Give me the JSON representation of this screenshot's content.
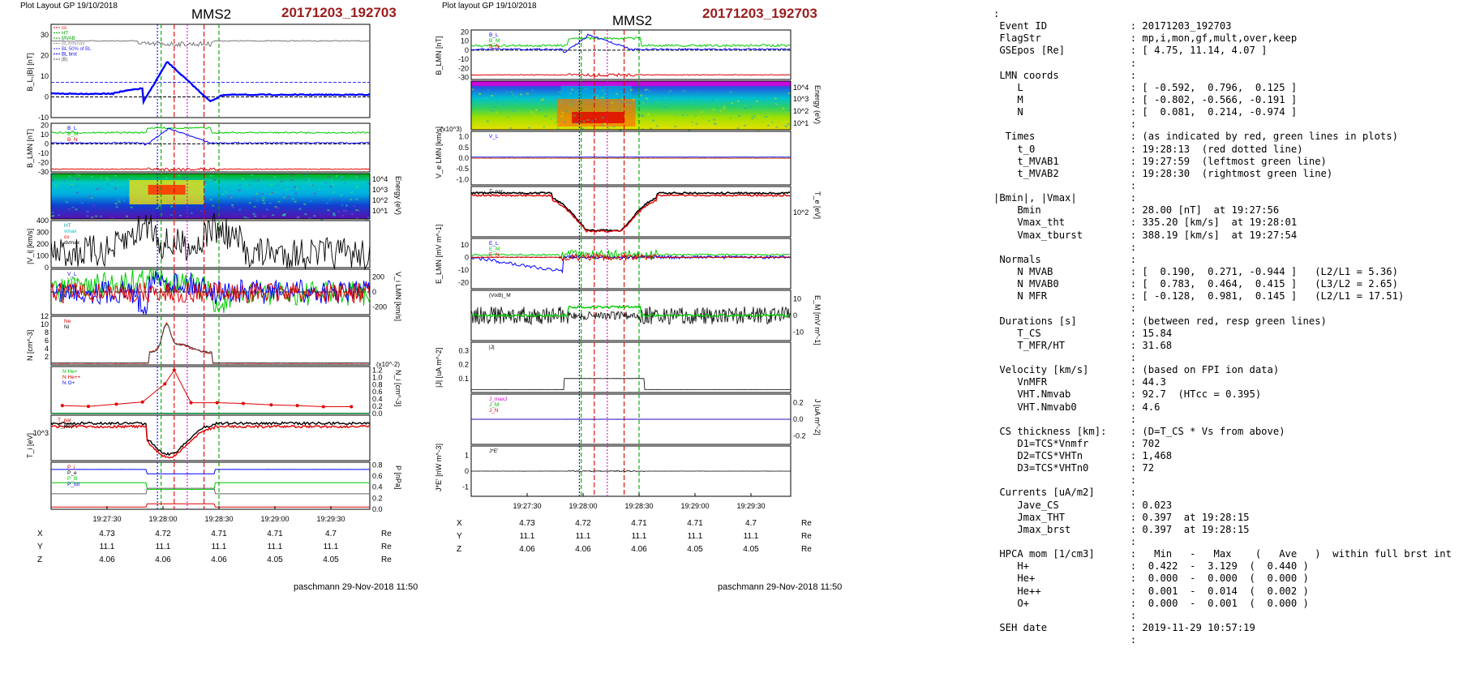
{
  "left": {
    "plot_label": "Plot Layout GP 19/10/2018",
    "spacecraft": "MMS2",
    "event": "20171203_192703",
    "footer": "paschmann 29-Nov-2018 11:50",
    "time_ticks": [
      "19:27:30",
      "19:28:00",
      "19:28:30",
      "19:29:00",
      "19:29:30"
    ],
    "coords": {
      "X": [
        "4.73",
        "4.72",
        "4.71",
        "4.71",
        "4.7"
      ],
      "Y": [
        "11.1",
        "11.1",
        "11.1",
        "11.1",
        "11.1"
      ],
      "Z": [
        "4.06",
        "4.06",
        "4.06",
        "4.05",
        "4.05"
      ],
      "unit": "Re"
    },
    "panels": {
      "bl": {
        "ylabel": "B_L,|B| [nT]",
        "ticks": [
          "30",
          "20",
          "10",
          "0",
          "-10"
        ],
        "legend": [
          "cs",
          "HT",
          "MVAB",
          "BLminmax",
          "BL 50% of BL",
          "BL brst",
          "|B|"
        ]
      },
      "blmn": {
        "ylabel": "B_LMN [nT]",
        "ticks": [
          "20",
          "10",
          "0",
          "-10",
          "-20",
          "-30"
        ],
        "legend": [
          "B_L",
          "B_M",
          "B_N"
        ]
      },
      "ion_spec": {
        "ylabel": "Energy (eV)",
        "ticks": [
          "10^4",
          "10^3",
          "10^2",
          "10^1"
        ]
      },
      "vi": {
        "ylabel": "|V_i| [km/s]",
        "ticks": [
          "400",
          "300",
          "200",
          "100",
          "0"
        ],
        "legend": [
          "HT",
          "vmax",
          "cs",
          "dvmax"
        ]
      },
      "vilmn": {
        "ylabel": "V_i LMN [km/s]",
        "ticks": [
          "200",
          "0",
          "-200"
        ],
        "legend": [
          "V_L",
          "V_M",
          "V_N"
        ]
      },
      "n": {
        "ylabel": "N [cm^-3]",
        "ticks": [
          "12",
          "10",
          "8",
          "6",
          "4",
          "2"
        ],
        "legend": [
          "Ne",
          "Ni"
        ]
      },
      "ni": {
        "ylabel": "N_i [cm^-3]",
        "multiplier": "(x10^-2)",
        "ticks": [
          "1.2",
          "1.0",
          "0.8",
          "0.6",
          "0.4",
          "0.2",
          "0.0"
        ],
        "legend": [
          "N He+",
          "N He++",
          "N O+"
        ]
      },
      "ti": {
        "ylabel": "T_i [eV]",
        "ticks": [
          "10^3"
        ],
        "legend": [
          "T_par",
          "T_perp"
        ]
      },
      "p": {
        "ylabel": "P [nPa]",
        "ticks": [
          "0.8",
          "0.6",
          "0.4",
          "0.2",
          "0.0"
        ],
        "legend": [
          "P_i",
          "P_e",
          "P_B",
          "P_tot"
        ]
      }
    }
  },
  "middle": {
    "plot_label": "Plot layout GP 19/10/2018",
    "spacecraft": "MMS2",
    "event": "20171203_192703",
    "footer": "paschmann 29-Nov-2018 11:50",
    "time_ticks": [
      "19:27:30",
      "19:28:00",
      "19:28:30",
      "19:29:00",
      "19:29:30"
    ],
    "coords": {
      "X": [
        "4.73",
        "4.72",
        "4.71",
        "4.71",
        "4.7"
      ],
      "Y": [
        "11.1",
        "11.1",
        "11.1",
        "11.1",
        "11.1"
      ],
      "Z": [
        "4.06",
        "4.06",
        "4.06",
        "4.05",
        "4.05"
      ],
      "unit": "Re"
    },
    "panels": {
      "blmn": {
        "ylabel": "B_LMN [nT]",
        "ticks": [
          "20",
          "10",
          "0",
          "-10",
          "-20",
          "-30"
        ],
        "legend": [
          "B_L",
          "B_M",
          "B_N"
        ]
      },
      "e_spec": {
        "ylabel": "Energy (eV)",
        "ticks": [
          "10^4",
          "10^3",
          "10^2",
          "10^1"
        ]
      },
      "ve": {
        "ylabel": "V_e LMN [km/s]",
        "multiplier": "(x10^3)",
        "ticks": [
          "1.0",
          "0.5",
          "0.0",
          "-0.5",
          "-1.0"
        ],
        "legend": [
          "V_L"
        ]
      },
      "te": {
        "ylabel": "T_e [eV]",
        "ticks": [
          "10^2"
        ],
        "legend": [
          "T_par"
        ]
      },
      "elmn": {
        "ylabel": "E_LMN [mV m^-1]",
        "ticks": [
          "10",
          "0",
          "-10",
          "-20"
        ],
        "legend": [
          "E_L",
          "E_M",
          "E_N"
        ]
      },
      "em": {
        "ylabel": "E_M [mV m^-1]",
        "ticks": [
          "10",
          "0",
          "-10"
        ],
        "legend": [
          "(VixB)_M"
        ]
      },
      "j": {
        "ylabel": "|J| [uA m^-2]",
        "ticks": [
          "0.3",
          "0.2",
          "0.1"
        ],
        "legend": [
          "|J|"
        ]
      },
      "jlmn": {
        "ylabel": "J [uA m^-2]",
        "ticks": [
          "0.2",
          "0.0",
          "-0.2"
        ],
        "legend": [
          "J_maxJ",
          "J_M",
          "J_N"
        ]
      },
      "je": {
        "ylabel": "J*E' [nW m^-3]",
        "ticks": [
          "1",
          "0",
          "-1"
        ],
        "legend": [
          "J*E'"
        ]
      }
    }
  },
  "info_lines": [
    ":",
    " Event ID              : 20171203_192703",
    " FlagStr               : mp,i,mon,gf,mult,over,keep",
    " GSEpos [Re]           : [ 4.75, 11.14, 4.07 ]",
    "                       :",
    " LMN coords            :",
    "    L                  : [ -0.592,  0.796,  0.125 ]",
    "    M                  : [ -0.802, -0.566, -0.191 ]",
    "    N                  : [  0.081,  0.214, -0.974 ]",
    "                       :",
    "  Times                : (as indicated by red, green lines in plots)",
    "    t_0                : 19:28:13  (red dotted line)",
    "    t_MVAB1            : 19:27:59  (leftmost green line)",
    "    t_MVAB2            : 19:28:30  (rightmost green line)",
    "                       :",
    "|Bmin|, |Vmax|         :",
    "    Bmin               : 28.00 [nT]  at 19:27:56",
    "    Vmax_tht           : 335.20 [km/s]  at 19:28:01",
    "    Vmax_tburst        : 388.19 [km/s]  at 19:27:54",
    "                       :",
    " Normals               :",
    "    N MVAB             : [  0.190,  0.271, -0.944 ]   (L2/L1 = 5.36)",
    "    N MVAB0            : [  0.783,  0.464,  0.415 ]   (L3/L2 = 2.65)",
    "    N MFR              : [ -0.128,  0.981,  0.145 ]   (L2/L1 = 17.51)",
    "                       :",
    " Durations [s]         : (between red, resp green lines)",
    "    T_CS               : 15.84",
    "    T_MFR/HT           : 31.68",
    "                       :",
    " Velocity [km/s]       : (based on FPI ion data)",
    "    VnMFR              : 44.3",
    "    VHT.Nmvab          : 92.7  (HTcc = 0.395)",
    "    VHT.Nmvab0         : 4.6",
    "                       :",
    " CS thickness [km]:    : (D=T_CS * Vs from above)",
    "    D1=TCS*Vnmfr       : 702",
    "    D2=TCS*VHTn        : 1,468",
    "    D3=TCS*VHTn0       : 72",
    "                       :",
    " Currents [uA/m2]      :",
    "    Jave_CS            : 0.023",
    "    Jmax_THT           : 0.397  at 19:28:15",
    "    Jmax_brst          : 0.397  at 19:28:15",
    "                       :",
    " HPCA mom [1/cm3]      :   Min   -   Max    (   Ave   )  within full brst int",
    "    H+                 :  0.422  -  3.129  (  0.440 )",
    "    He+                :  0.000  -  0.000  (  0.000 )",
    "    He++               :  0.001  -  0.014  (  0.002 )",
    "    O+                 :  0.000  -  0.001  (  0.000 )",
    "                       :",
    " SEH date              : 2019-11-29 10:57:19",
    "                       :"
  ],
  "chart_data": [
    {
      "type": "line",
      "title": "MMS2 20171203_192703",
      "xlabel": "",
      "x_tick_labels": [
        "19:27:30",
        "19:28:00",
        "19:28:30",
        "19:29:00",
        "19:29:30"
      ],
      "vertical_markers": {
        "green_dashed": [
          "19:27:59",
          "19:28:30"
        ],
        "red_dotted": [
          "19:28:13"
        ]
      },
      "panels": [
        {
          "name": "B_L,|B|",
          "ylabel": "B_L,|B| [nT]",
          "ylim": [
            -10,
            35
          ],
          "series": [
            {
              "name": "|B|",
              "approx": "~27 throughout"
            },
            {
              "name": "BL brst",
              "approx": "1-2 before, rises to 17 at 19:28:02, -2 at 19:28:27, ~1 after"
            }
          ]
        },
        {
          "name": "|V_i|",
          "ylabel": "|V_i| [km/s]",
          "ylim": [
            0,
            400
          ],
          "series": [
            {
              "name": "|Vi|",
              "approx": "~100 early, peak 390 at 19:27:54, ~150-350 across event, ~80-130 after"
            }
          ]
        },
        {
          "name": "N",
          "ylabel": "N [cm^-3]",
          "ylim": [
            0,
            12
          ],
          "series": [
            {
              "name": "Ne",
              "approx": "~0.5 outside, peak ~10 at 19:28:05"
            }
          ]
        },
        {
          "name": "N_i minor",
          "ylabel": "N_i [cm^-3] (x10^-2)",
          "ylim": [
            0,
            1.3
          ],
          "series": [
            {
              "name": "N He++",
              "x": [
                "19:27:06",
                "19:27:20",
                "19:27:35",
                "19:27:49",
                "19:28:01",
                "19:28:06",
                "19:28:15",
                "19:28:29",
                "19:28:43",
                "19:28:58",
                "19:29:12",
                "19:29:26",
                "19:29:41"
              ],
              "y": [
                0.22,
                0.2,
                0.26,
                0.32,
                0.82,
                1.2,
                0.3,
                0.3,
                0.28,
                0.24,
                0.22,
                0.19,
                0.19
              ]
            }
          ]
        }
      ]
    }
  ]
}
